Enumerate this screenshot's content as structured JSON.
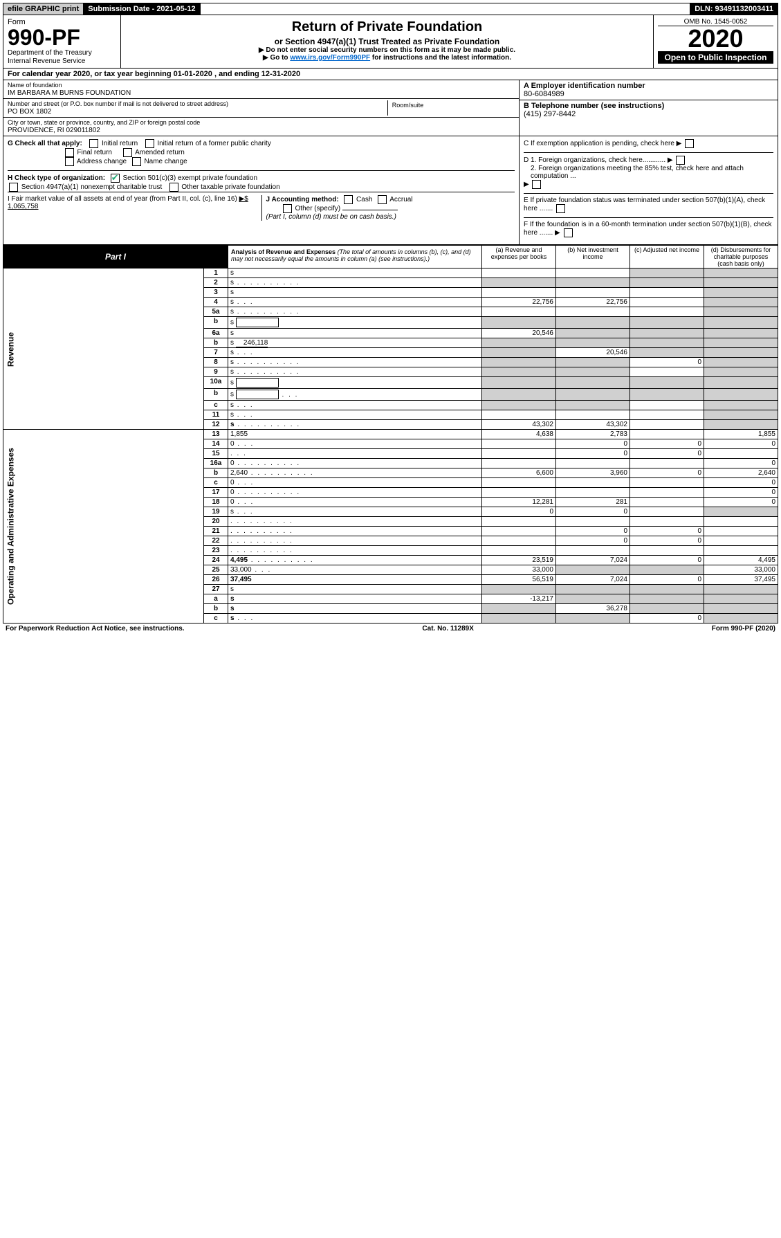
{
  "topbar": {
    "efile": "efile GRAPHIC print",
    "submission_label": "Submission Date - 2021-05-12",
    "dln_label": "DLN: 93491132003411"
  },
  "header": {
    "form_word": "Form",
    "form_no": "990-PF",
    "dept": "Department of the Treasury",
    "irs": "Internal Revenue Service",
    "title": "Return of Private Foundation",
    "subtitle": "or Section 4947(a)(1) Trust Treated as Private Foundation",
    "note1": "▶ Do not enter social security numbers on this form as it may be made public.",
    "note2_prefix": "▶ Go to ",
    "note2_link": "www.irs.gov/Form990PF",
    "note2_suffix": " for instructions and the latest information.",
    "omb": "OMB No. 1545-0052",
    "year": "2020",
    "open": "Open to Public Inspection"
  },
  "calyear": "For calendar year 2020, or tax year beginning 01-01-2020 , and ending 12-31-2020",
  "info": {
    "name_lbl": "Name of foundation",
    "name": "IM BARBARA M BURNS FOUNDATION",
    "addr_lbl": "Number and street (or P.O. box number if mail is not delivered to street address)",
    "addr": "PO BOX 1802",
    "room_lbl": "Room/suite",
    "city_lbl": "City or town, state or province, country, and ZIP or foreign postal code",
    "city": "PROVIDENCE, RI  029011802",
    "ein_lbl": "A Employer identification number",
    "ein": "80-6084989",
    "phone_lbl": "B Telephone number (see instructions)",
    "phone": "(415) 297-8442",
    "c_lbl": "C If exemption application is pending, check here",
    "d1": "D 1. Foreign organizations, check here............",
    "d2": "2. Foreign organizations meeting the 85% test, check here and attach computation ...",
    "e": "E If private foundation status was terminated under section 507(b)(1)(A), check here .......",
    "f": "F If the foundation is in a 60-month termination under section 507(b)(1)(B), check here ......."
  },
  "g": {
    "label": "G Check all that apply:",
    "initial": "Initial return",
    "initial_former": "Initial return of a former public charity",
    "final": "Final return",
    "amended": "Amended return",
    "address": "Address change",
    "namechg": "Name change"
  },
  "h": {
    "label": "H Check type of organization:",
    "s501": "Section 501(c)(3) exempt private foundation",
    "s4947": "Section 4947(a)(1) nonexempt charitable trust",
    "other": "Other taxable private foundation"
  },
  "i": {
    "label": "I Fair market value of all assets at end of year (from Part II, col. (c), line 16)",
    "value": "▶$  1,065,758"
  },
  "j": {
    "label": "J Accounting method:",
    "cash": "Cash",
    "accrual": "Accrual",
    "other": "Other (specify)",
    "note": "(Part I, column (d) must be on cash basis.)"
  },
  "part1": {
    "tag": "Part I",
    "title": "Analysis of Revenue and Expenses",
    "note": " (The total of amounts in columns (b), (c), and (d) may not necessarily equal the amounts in column (a) (see instructions).)",
    "col_a": "(a)   Revenue and expenses per books",
    "col_b": "(b)  Net investment income",
    "col_c": "(c)  Adjusted net income",
    "col_d": "(d)  Disbursements for charitable purposes (cash basis only)"
  },
  "sections": {
    "revenue": "Revenue",
    "expenses": "Operating and Administrative Expenses"
  },
  "rows": [
    {
      "n": "1",
      "d": "s",
      "a": "",
      "b": "",
      "c": "s"
    },
    {
      "n": "2",
      "d": "s",
      "a": "s",
      "b": "s",
      "c": "s",
      "dots": true
    },
    {
      "n": "3",
      "d": "s",
      "a": "",
      "b": "",
      "c": ""
    },
    {
      "n": "4",
      "d": "s",
      "a": "22,756",
      "b": "22,756",
      "c": "",
      "dots": "s"
    },
    {
      "n": "5a",
      "d": "s",
      "a": "",
      "b": "",
      "c": "",
      "dots": true
    },
    {
      "n": "b",
      "d": "s",
      "a": "s",
      "b": "s",
      "c": "s",
      "box": true
    },
    {
      "n": "6a",
      "d": "s",
      "a": "20,546",
      "b": "s",
      "c": "s"
    },
    {
      "n": "b",
      "d": "s",
      "a": "s",
      "b": "s",
      "c": "s",
      "inline": "246,118"
    },
    {
      "n": "7",
      "d": "s",
      "a": "s",
      "b": "20,546",
      "c": "s",
      "dots": "s"
    },
    {
      "n": "8",
      "d": "s",
      "a": "s",
      "b": "s",
      "c": "0",
      "dots": true
    },
    {
      "n": "9",
      "d": "s",
      "a": "s",
      "b": "s",
      "c": "",
      "dots": true
    },
    {
      "n": "10a",
      "d": "s",
      "a": "s",
      "b": "s",
      "c": "s",
      "box": true
    },
    {
      "n": "b",
      "d": "s",
      "a": "s",
      "b": "s",
      "c": "s",
      "box": true,
      "dots": "s"
    },
    {
      "n": "c",
      "d": "s",
      "a": "s",
      "b": "s",
      "c": "",
      "dots": "s"
    },
    {
      "n": "11",
      "d": "s",
      "a": "",
      "b": "",
      "c": "",
      "dots": "s"
    },
    {
      "n": "12",
      "d": "s",
      "a": "43,302",
      "b": "43,302",
      "c": "",
      "dots": true,
      "bold": true
    }
  ],
  "erows": [
    {
      "n": "13",
      "d": "1,855",
      "a": "4,638",
      "b": "2,783",
      "c": ""
    },
    {
      "n": "14",
      "d": "0",
      "a": "",
      "b": "0",
      "c": "0",
      "dots": "s"
    },
    {
      "n": "15",
      "d": "",
      "a": "",
      "b": "0",
      "c": "0",
      "dots": "s"
    },
    {
      "n": "16a",
      "d": "0",
      "a": "",
      "b": "",
      "c": "",
      "dots": true
    },
    {
      "n": "b",
      "d": "2,640",
      "a": "6,600",
      "b": "3,960",
      "c": "0",
      "dots": true
    },
    {
      "n": "c",
      "d": "0",
      "a": "",
      "b": "",
      "c": "",
      "dots": "s"
    },
    {
      "n": "17",
      "d": "0",
      "a": "",
      "b": "",
      "c": "",
      "dots": true
    },
    {
      "n": "18",
      "d": "0",
      "a": "12,281",
      "b": "281",
      "c": "",
      "dots": "s"
    },
    {
      "n": "19",
      "d": "s",
      "a": "0",
      "b": "0",
      "c": "",
      "dots": "s"
    },
    {
      "n": "20",
      "d": "",
      "a": "",
      "b": "",
      "c": "",
      "dots": true
    },
    {
      "n": "21",
      "d": "",
      "a": "",
      "b": "0",
      "c": "0",
      "dots": true
    },
    {
      "n": "22",
      "d": "",
      "a": "",
      "b": "0",
      "c": "0",
      "dots": true
    },
    {
      "n": "23",
      "d": "",
      "a": "",
      "b": "",
      "c": "",
      "dots": true
    },
    {
      "n": "24",
      "d": "4,495",
      "a": "23,519",
      "b": "7,024",
      "c": "0",
      "dots": true,
      "bold": true
    },
    {
      "n": "25",
      "d": "33,000",
      "a": "33,000",
      "b": "s",
      "c": "s",
      "dots": "s"
    },
    {
      "n": "26",
      "d": "37,495",
      "a": "56,519",
      "b": "7,024",
      "c": "0",
      "bold": true
    },
    {
      "n": "27",
      "d": "s",
      "a": "s",
      "b": "s",
      "c": "s"
    },
    {
      "n": "a",
      "d": "s",
      "a": "-13,217",
      "b": "s",
      "c": "s",
      "bold": true
    },
    {
      "n": "b",
      "d": "s",
      "a": "s",
      "b": "36,278",
      "c": "s",
      "bold": true
    },
    {
      "n": "c",
      "d": "s",
      "a": "s",
      "b": "s",
      "c": "0",
      "bold": true,
      "dots": "s"
    }
  ],
  "footer": {
    "left": "For Paperwork Reduction Act Notice, see instructions.",
    "mid": "Cat. No. 11289X",
    "right": "Form 990-PF (2020)"
  }
}
